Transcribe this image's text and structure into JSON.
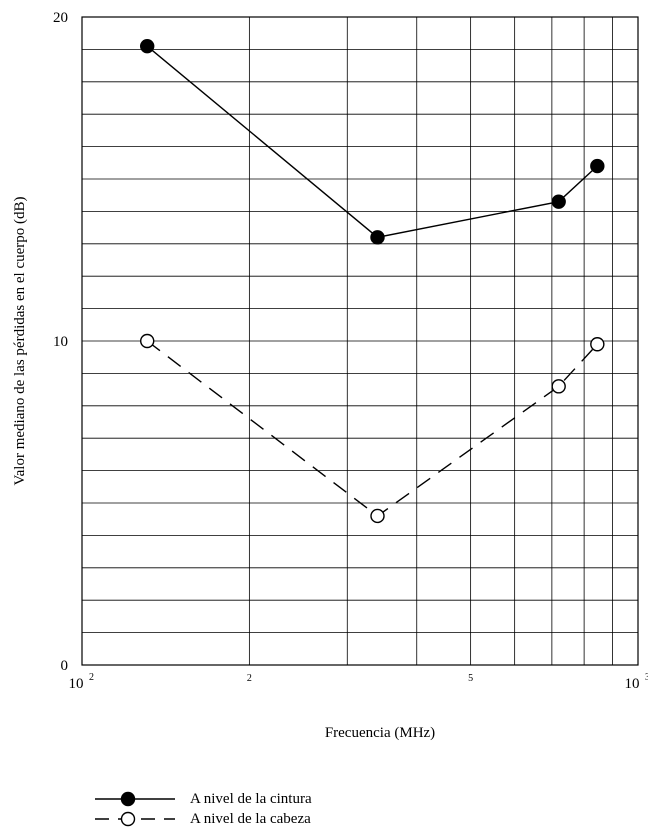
{
  "chart_data": {
    "type": "line",
    "title": "",
    "xlabel": "Frecuencia (MHz)",
    "ylabel": "Valor mediano de las pérdidas en el cuerpo  (dB)",
    "xscale": "log",
    "xlim": [
      100,
      1000
    ],
    "ylim": [
      0,
      20
    ],
    "x_tick_labels": [
      {
        "value": 100,
        "base": "10",
        "exp": "2"
      },
      {
        "value": 200,
        "base": "2",
        "exp": ""
      },
      {
        "value": 500,
        "base": "5",
        "exp": ""
      },
      {
        "value": 1000,
        "base": "10",
        "exp": "3"
      }
    ],
    "y_tick_labels": [
      {
        "value": 0,
        "label": "0"
      },
      {
        "value": 10,
        "label": "10"
      },
      {
        "value": 20,
        "label": "20"
      }
    ],
    "x_gridlines": [
      200,
      300,
      400,
      500,
      600,
      700,
      800,
      900
    ],
    "y_grid_step": 1,
    "grid": true,
    "legend_position": "bottom-left",
    "series": [
      {
        "name": "A nivel de la cintura",
        "marker": "filled-circle",
        "line": "solid",
        "color": "#000000",
        "x": [
          131,
          340,
          720,
          845
        ],
        "y": [
          19.1,
          13.2,
          14.3,
          15.4
        ]
      },
      {
        "name": "A nivel de la cabeza",
        "marker": "open-circle",
        "line": "dashed",
        "color": "#000000",
        "x": [
          131,
          340,
          720,
          845
        ],
        "y": [
          10.0,
          4.6,
          8.6,
          9.9
        ]
      }
    ]
  }
}
